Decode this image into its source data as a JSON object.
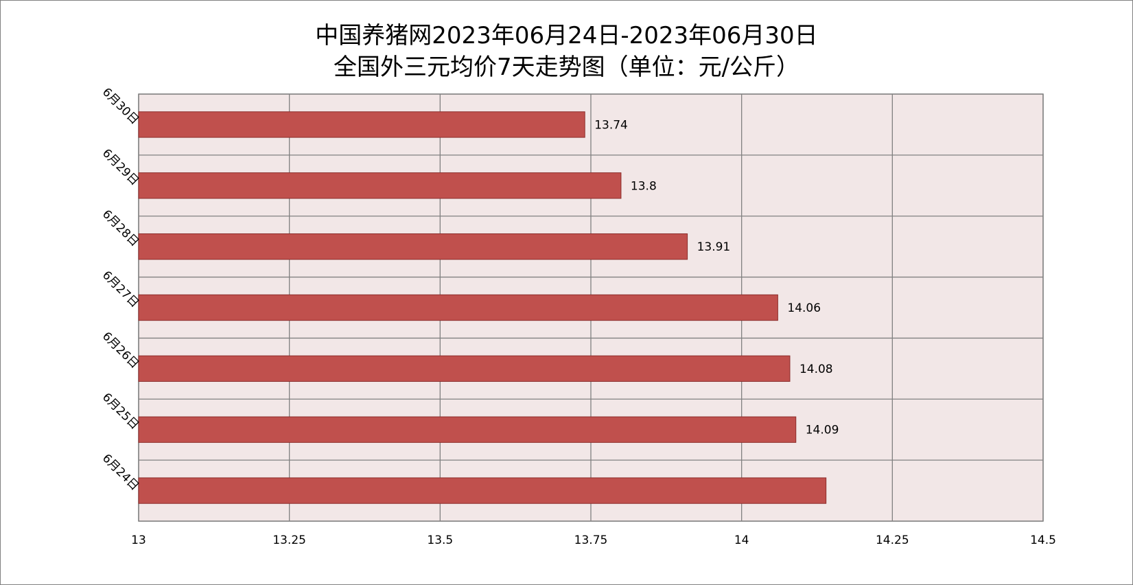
{
  "chart_data": {
    "type": "bar",
    "orientation": "horizontal",
    "title_line1": "中国养猪网2023年06月24日-2023年06月30日",
    "title_line2": "全国外三元均价7天走势图（单位：元/公斤）",
    "categories": [
      "6月30日",
      "6月29日",
      "6月28日",
      "6月27日",
      "6月26日",
      "6月25日",
      "6月24日"
    ],
    "values": [
      13.74,
      13.8,
      13.91,
      14.06,
      14.08,
      14.09,
      14.14
    ],
    "data_labels": [
      "13.74",
      "13.8",
      "13.91",
      "14.06",
      "14.08",
      "14.09",
      ""
    ],
    "xlim": [
      13,
      14.5
    ],
    "x_ticks": [
      "13",
      "13.25",
      "13.5",
      "13.75",
      "14",
      "14.25",
      "14.5"
    ],
    "grid": true,
    "colors": {
      "bar": "#c0504d",
      "bar_border": "#8c2d2b",
      "plot_bg": "#f2e7e7",
      "grid": "#808080"
    }
  }
}
